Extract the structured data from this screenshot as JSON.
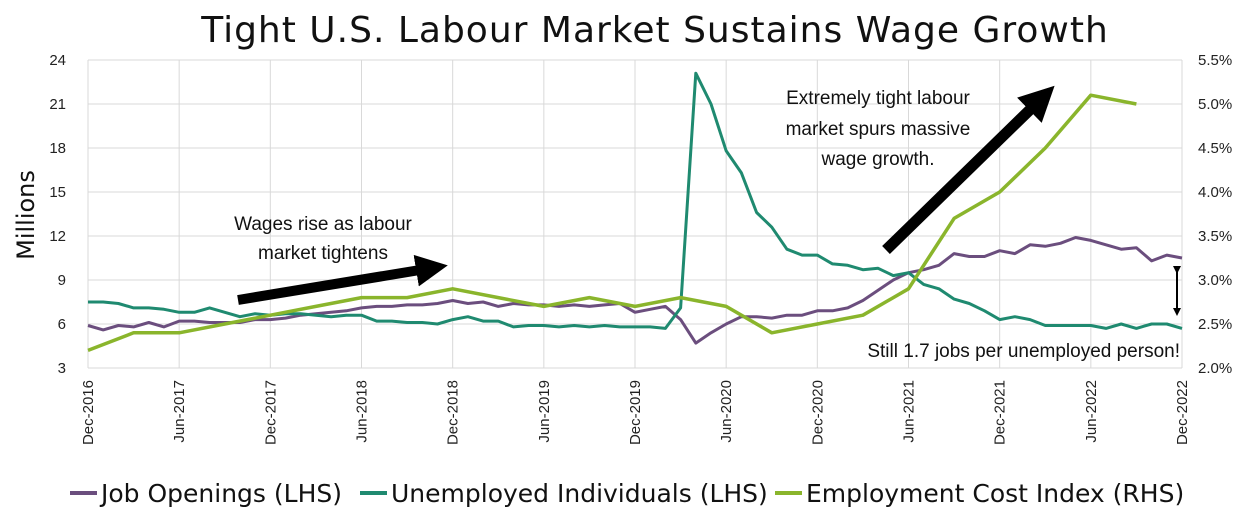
{
  "chart_data": {
    "type": "line",
    "title": "Tight U.S. Labour Market Sustains Wage Growth",
    "ylabel": "Millions",
    "ylim": [
      3,
      24
    ],
    "yticks": [
      3,
      6,
      9,
      12,
      15,
      18,
      21,
      24
    ],
    "y2lim": [
      2.0,
      5.5
    ],
    "y2ticks": [
      "2.0%",
      "2.5%",
      "3.0%",
      "3.5%",
      "4.0%",
      "4.5%",
      "5.0%",
      "5.5%"
    ],
    "xlim": [
      "2016-12",
      "2022-12"
    ],
    "xticks": [
      "Dec-2016",
      "Jun-2017",
      "Dec-2017",
      "Jun-2018",
      "Dec-2018",
      "Jun-2019",
      "Dec-2019",
      "Jun-2020",
      "Dec-2020",
      "Jun-2021",
      "Dec-2021",
      "Jun-2022",
      "Dec-2022"
    ],
    "grid": true,
    "legend_position": "bottom",
    "series": [
      {
        "name": "Job Openings (LHS)",
        "axis": "left",
        "color": "#6b4e7e",
        "points": [
          [
            "2016-12",
            5.9
          ],
          [
            "2017-01",
            5.6
          ],
          [
            "2017-02",
            5.9
          ],
          [
            "2017-03",
            5.8
          ],
          [
            "2017-04",
            6.1
          ],
          [
            "2017-05",
            5.8
          ],
          [
            "2017-06",
            6.2
          ],
          [
            "2017-07",
            6.2
          ],
          [
            "2017-08",
            6.1
          ],
          [
            "2017-09",
            6.1
          ],
          [
            "2017-10",
            6.1
          ],
          [
            "2017-11",
            6.3
          ],
          [
            "2017-12",
            6.3
          ],
          [
            "2018-01",
            6.4
          ],
          [
            "2018-02",
            6.6
          ],
          [
            "2018-03",
            6.7
          ],
          [
            "2018-04",
            6.8
          ],
          [
            "2018-05",
            6.9
          ],
          [
            "2018-06",
            7.1
          ],
          [
            "2018-07",
            7.2
          ],
          [
            "2018-08",
            7.2
          ],
          [
            "2018-09",
            7.3
          ],
          [
            "2018-10",
            7.3
          ],
          [
            "2018-11",
            7.4
          ],
          [
            "2018-12",
            7.6
          ],
          [
            "2019-01",
            7.4
          ],
          [
            "2019-02",
            7.5
          ],
          [
            "2019-03",
            7.2
          ],
          [
            "2019-04",
            7.4
          ],
          [
            "2019-05",
            7.3
          ],
          [
            "2019-06",
            7.3
          ],
          [
            "2019-07",
            7.2
          ],
          [
            "2019-08",
            7.3
          ],
          [
            "2019-09",
            7.2
          ],
          [
            "2019-10",
            7.3
          ],
          [
            "2019-11",
            7.4
          ],
          [
            "2019-12",
            6.8
          ],
          [
            "2020-01",
            7.0
          ],
          [
            "2020-02",
            7.2
          ],
          [
            "2020-03",
            6.3
          ],
          [
            "2020-04",
            4.7
          ],
          [
            "2020-05",
            5.4
          ],
          [
            "2020-06",
            6.0
          ],
          [
            "2020-07",
            6.5
          ],
          [
            "2020-08",
            6.5
          ],
          [
            "2020-09",
            6.4
          ],
          [
            "2020-10",
            6.6
          ],
          [
            "2020-11",
            6.6
          ],
          [
            "2020-12",
            6.9
          ],
          [
            "2021-01",
            6.9
          ],
          [
            "2021-02",
            7.1
          ],
          [
            "2021-03",
            7.6
          ],
          [
            "2021-04",
            8.3
          ],
          [
            "2021-05",
            9.0
          ],
          [
            "2021-06",
            9.5
          ],
          [
            "2021-07",
            9.7
          ],
          [
            "2021-08",
            10.0
          ],
          [
            "2021-09",
            10.8
          ],
          [
            "2021-10",
            10.6
          ],
          [
            "2021-11",
            10.6
          ],
          [
            "2021-12",
            11.0
          ],
          [
            "2022-01",
            10.8
          ],
          [
            "2022-02",
            11.4
          ],
          [
            "2022-03",
            11.3
          ],
          [
            "2022-04",
            11.5
          ],
          [
            "2022-05",
            11.9
          ],
          [
            "2022-06",
            11.7
          ],
          [
            "2022-07",
            11.4
          ],
          [
            "2022-08",
            11.1
          ],
          [
            "2022-09",
            11.2
          ],
          [
            "2022-10",
            10.3
          ],
          [
            "2022-11",
            10.7
          ],
          [
            "2022-12",
            10.5
          ]
        ]
      },
      {
        "name": "Unemployed Individuals (LHS)",
        "axis": "left",
        "color": "#1f8a70",
        "points": [
          [
            "2016-12",
            7.5
          ],
          [
            "2017-01",
            7.5
          ],
          [
            "2017-02",
            7.4
          ],
          [
            "2017-03",
            7.1
          ],
          [
            "2017-04",
            7.1
          ],
          [
            "2017-05",
            7.0
          ],
          [
            "2017-06",
            6.8
          ],
          [
            "2017-07",
            6.8
          ],
          [
            "2017-08",
            7.1
          ],
          [
            "2017-09",
            6.8
          ],
          [
            "2017-10",
            6.5
          ],
          [
            "2017-11",
            6.7
          ],
          [
            "2017-12",
            6.6
          ],
          [
            "2018-01",
            6.7
          ],
          [
            "2018-02",
            6.7
          ],
          [
            "2018-03",
            6.6
          ],
          [
            "2018-04",
            6.5
          ],
          [
            "2018-05",
            6.6
          ],
          [
            "2018-06",
            6.6
          ],
          [
            "2018-07",
            6.2
          ],
          [
            "2018-08",
            6.2
          ],
          [
            "2018-09",
            6.1
          ],
          [
            "2018-10",
            6.1
          ],
          [
            "2018-11",
            6.0
          ],
          [
            "2018-12",
            6.3
          ],
          [
            "2019-01",
            6.5
          ],
          [
            "2019-02",
            6.2
          ],
          [
            "2019-03",
            6.2
          ],
          [
            "2019-04",
            5.8
          ],
          [
            "2019-05",
            5.9
          ],
          [
            "2019-06",
            5.9
          ],
          [
            "2019-07",
            5.8
          ],
          [
            "2019-08",
            5.9
          ],
          [
            "2019-09",
            5.8
          ],
          [
            "2019-10",
            5.9
          ],
          [
            "2019-11",
            5.8
          ],
          [
            "2019-12",
            5.8
          ],
          [
            "2020-01",
            5.8
          ],
          [
            "2020-02",
            5.7
          ],
          [
            "2020-03",
            7.1
          ],
          [
            "2020-04",
            23.1
          ],
          [
            "2020-05",
            21.0
          ],
          [
            "2020-06",
            17.8
          ],
          [
            "2020-07",
            16.3
          ],
          [
            "2020-08",
            13.6
          ],
          [
            "2020-09",
            12.6
          ],
          [
            "2020-10",
            11.1
          ],
          [
            "2020-11",
            10.7
          ],
          [
            "2020-12",
            10.7
          ],
          [
            "2021-01",
            10.1
          ],
          [
            "2021-02",
            10.0
          ],
          [
            "2021-03",
            9.7
          ],
          [
            "2021-04",
            9.8
          ],
          [
            "2021-05",
            9.3
          ],
          [
            "2021-06",
            9.5
          ],
          [
            "2021-07",
            8.7
          ],
          [
            "2021-08",
            8.4
          ],
          [
            "2021-09",
            7.7
          ],
          [
            "2021-10",
            7.4
          ],
          [
            "2021-11",
            6.9
          ],
          [
            "2021-12",
            6.3
          ],
          [
            "2022-01",
            6.5
          ],
          [
            "2022-02",
            6.3
          ],
          [
            "2022-03",
            5.9
          ],
          [
            "2022-04",
            5.9
          ],
          [
            "2022-05",
            5.9
          ],
          [
            "2022-06",
            5.9
          ],
          [
            "2022-07",
            5.7
          ],
          [
            "2022-08",
            6.0
          ],
          [
            "2022-09",
            5.7
          ],
          [
            "2022-10",
            6.0
          ],
          [
            "2022-11",
            6.0
          ],
          [
            "2022-12",
            5.7
          ]
        ]
      },
      {
        "name": "Employment Cost Index (RHS)",
        "axis": "right",
        "color": "#8ab52c",
        "points": [
          [
            "2016-12",
            2.2
          ],
          [
            "2017-03",
            2.4
          ],
          [
            "2017-06",
            2.4
          ],
          [
            "2017-09",
            2.5
          ],
          [
            "2017-12",
            2.6
          ],
          [
            "2018-03",
            2.7
          ],
          [
            "2018-06",
            2.8
          ],
          [
            "2018-09",
            2.8
          ],
          [
            "2018-12",
            2.9
          ],
          [
            "2019-03",
            2.8
          ],
          [
            "2019-06",
            2.7
          ],
          [
            "2019-09",
            2.8
          ],
          [
            "2019-12",
            2.7
          ],
          [
            "2020-03",
            2.8
          ],
          [
            "2020-06",
            2.7
          ],
          [
            "2020-09",
            2.4
          ],
          [
            "2020-12",
            2.5
          ],
          [
            "2021-03",
            2.6
          ],
          [
            "2021-06",
            2.9
          ],
          [
            "2021-09",
            3.7
          ],
          [
            "2021-12",
            4.0
          ],
          [
            "2022-03",
            4.5
          ],
          [
            "2022-06",
            5.1
          ],
          [
            "2022-09",
            5.0
          ]
        ]
      }
    ],
    "annotations": [
      {
        "lines": [
          "Wages rise as labour",
          "market tightens"
        ]
      },
      {
        "lines": [
          "Extremely tight labour",
          "market spurs massive",
          "wage growth."
        ]
      },
      {
        "lines": [
          "Still 1.7 jobs per unemployed person!"
        ]
      }
    ]
  }
}
